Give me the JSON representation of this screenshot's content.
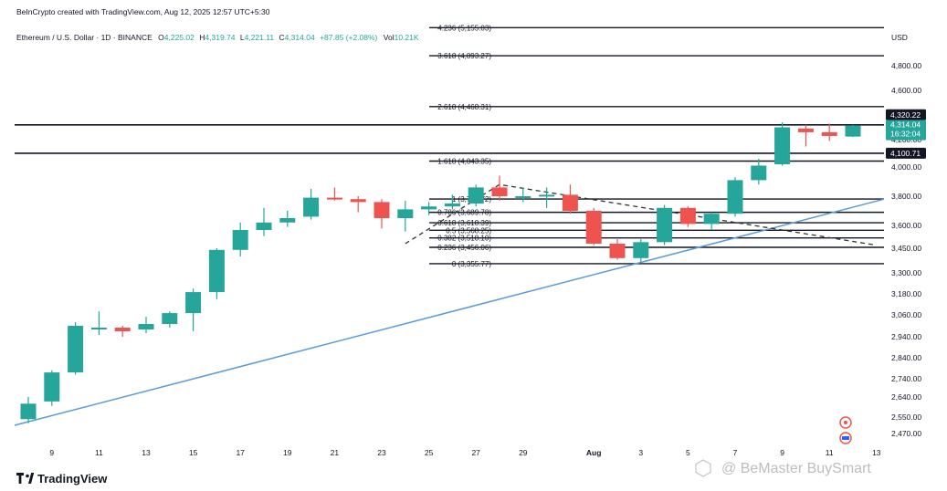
{
  "credit": "BeInCrypto created with TradingView.com, Aug 12, 2025 12:57 UTC+5:30",
  "symbol": "Ethereum / U.S. Dollar · 1D · BINANCE",
  "ohlc": {
    "o_label": "O",
    "o": "4,225.02",
    "h_label": "H",
    "h": "4,319.74",
    "l_label": "L",
    "l": "4,221.11",
    "c_label": "C",
    "c": "4,314.04",
    "change": "+87.85 (+2.08%)",
    "vol_label": "Vol",
    "vol": "10.21K"
  },
  "currency": "USD",
  "brand": "TradingView",
  "watermark": "@ BeMaster BuySmart",
  "colors": {
    "up": "#26a69a",
    "down": "#ef5350",
    "trend": "#5b9bd5",
    "level": "#131722"
  },
  "chart_data": {
    "type": "candlestick",
    "x_ticks": [
      "9",
      "11",
      "13",
      "15",
      "17",
      "19",
      "21",
      "23",
      "25",
      "27",
      "29",
      "Aug",
      "3",
      "5",
      "7",
      "9",
      "11",
      "13"
    ],
    "y_ticks": [
      "2,470.00",
      "2,550.00",
      "2,640.00",
      "2,740.00",
      "2,840.00",
      "2,940.00",
      "3,060.00",
      "3,180.00",
      "3,300.00",
      "3,450.00",
      "3,600.00",
      "3,800.00",
      "4,000.00",
      "4,200.00",
      "4,600.00",
      "4,800.00"
    ],
    "candles": [
      {
        "date": "Jul 8",
        "o": 2540,
        "h": 2640,
        "l": 2520,
        "c": 2610
      },
      {
        "date": "Jul 9",
        "o": 2620,
        "h": 2780,
        "l": 2600,
        "c": 2770
      },
      {
        "date": "Jul 10",
        "o": 2770,
        "h": 3020,
        "l": 2760,
        "c": 3000
      },
      {
        "date": "Jul 11",
        "o": 2990,
        "h": 3080,
        "l": 2950,
        "c": 2990
      },
      {
        "date": "Jul 12",
        "o": 2990,
        "h": 3000,
        "l": 2940,
        "c": 2970
      },
      {
        "date": "Jul 13",
        "o": 2980,
        "h": 3050,
        "l": 2960,
        "c": 3010
      },
      {
        "date": "Jul 14",
        "o": 3010,
        "h": 3080,
        "l": 2990,
        "c": 3070
      },
      {
        "date": "Jul 15",
        "o": 3070,
        "h": 3210,
        "l": 2970,
        "c": 3190
      },
      {
        "date": "Jul 16",
        "o": 3190,
        "h": 3450,
        "l": 3150,
        "c": 3440
      },
      {
        "date": "Jul 17",
        "o": 3440,
        "h": 3620,
        "l": 3400,
        "c": 3570
      },
      {
        "date": "Jul 18",
        "o": 3570,
        "h": 3720,
        "l": 3530,
        "c": 3620
      },
      {
        "date": "Jul 19",
        "o": 3620,
        "h": 3700,
        "l": 3590,
        "c": 3650
      },
      {
        "date": "Jul 20",
        "o": 3660,
        "h": 3850,
        "l": 3640,
        "c": 3790
      },
      {
        "date": "Jul 21",
        "o": 3790,
        "h": 3860,
        "l": 3770,
        "c": 3780
      },
      {
        "date": "Jul 22",
        "o": 3780,
        "h": 3800,
        "l": 3690,
        "c": 3760
      },
      {
        "date": "Jul 23",
        "o": 3760,
        "h": 3780,
        "l": 3580,
        "c": 3650
      },
      {
        "date": "Jul 24",
        "o": 3650,
        "h": 3770,
        "l": 3560,
        "c": 3710
      },
      {
        "date": "Jul 25",
        "o": 3710,
        "h": 3760,
        "l": 3670,
        "c": 3730
      },
      {
        "date": "Jul 26",
        "o": 3730,
        "h": 3810,
        "l": 3710,
        "c": 3750
      },
      {
        "date": "Jul 27",
        "o": 3750,
        "h": 3880,
        "l": 3730,
        "c": 3860
      },
      {
        "date": "Jul 28",
        "o": 3860,
        "h": 3940,
        "l": 3770,
        "c": 3800
      },
      {
        "date": "Jul 29",
        "o": 3800,
        "h": 3860,
        "l": 3760,
        "c": 3800
      },
      {
        "date": "Jul 30",
        "o": 3800,
        "h": 3860,
        "l": 3720,
        "c": 3810
      },
      {
        "date": "Jul 31",
        "o": 3810,
        "h": 3880,
        "l": 3680,
        "c": 3700
      },
      {
        "date": "Aug 1",
        "o": 3700,
        "h": 3720,
        "l": 3470,
        "c": 3480
      },
      {
        "date": "Aug 2",
        "o": 3480,
        "h": 3510,
        "l": 3380,
        "c": 3390
      },
      {
        "date": "Aug 3",
        "o": 3390,
        "h": 3510,
        "l": 3360,
        "c": 3490
      },
      {
        "date": "Aug 4",
        "o": 3490,
        "h": 3740,
        "l": 3470,
        "c": 3720
      },
      {
        "date": "Aug 5",
        "o": 3720,
        "h": 3730,
        "l": 3590,
        "c": 3610
      },
      {
        "date": "Aug 6",
        "o": 3610,
        "h": 3690,
        "l": 3570,
        "c": 3680
      },
      {
        "date": "Aug 7",
        "o": 3680,
        "h": 3930,
        "l": 3660,
        "c": 3910
      },
      {
        "date": "Aug 8",
        "o": 3910,
        "h": 4060,
        "l": 3880,
        "c": 4010
      },
      {
        "date": "Aug 9",
        "o": 4020,
        "h": 4340,
        "l": 4010,
        "c": 4300
      },
      {
        "date": "Aug 10",
        "o": 4290,
        "h": 4320,
        "l": 4150,
        "c": 4260
      },
      {
        "date": "Aug 11",
        "o": 4260,
        "h": 4330,
        "l": 4190,
        "c": 4230
      },
      {
        "date": "Aug 12",
        "o": 4225.02,
        "h": 4319.74,
        "l": 4221.11,
        "c": 4314.04
      }
    ],
    "fib_levels": [
      {
        "label": "4.236 (5,155.03)",
        "value": 5155.03
      },
      {
        "label": "3.618 (4,893.27)",
        "value": 4893.27
      },
      {
        "label": "2.618 (4,468.31)",
        "value": 4468.31
      },
      {
        "label": "1.618 (4,043.35)",
        "value": 4043.35
      },
      {
        "label": "1 (3,780.72)",
        "value": 3780.72
      },
      {
        "label": "0.786 (3,689.78)",
        "value": 3689.78
      },
      {
        "label": "0.618 (3,618.39)",
        "value": 3618.39
      },
      {
        "label": "0.5 (3,568.25)",
        "value": 3568.25
      },
      {
        "label": "0.382 (3,518.10)",
        "value": 3518.1
      },
      {
        "label": "0.236 (3,456.06)",
        "value": 3456.06
      },
      {
        "label": "0 (3,355.77)",
        "value": 3355.77
      }
    ],
    "horizontal_levels": [
      {
        "label": "4,320.22",
        "value": 4320.22
      },
      {
        "label": "4,100.71",
        "value": 4100.71
      }
    ],
    "price_tag": {
      "label": "4,314.04",
      "countdown": "16:32:04",
      "value": 4314.04
    },
    "trendline": {
      "from": {
        "date": "Jul 8",
        "value": 2510
      },
      "to": {
        "date": "Aug 13",
        "value": 3780
      }
    },
    "dashed_pattern": [
      {
        "date": "Jul 24",
        "value": 3480
      },
      {
        "date": "Jul 28",
        "value": 3880
      },
      {
        "date": "Aug 13",
        "value": 3470
      }
    ],
    "grid": false
  }
}
